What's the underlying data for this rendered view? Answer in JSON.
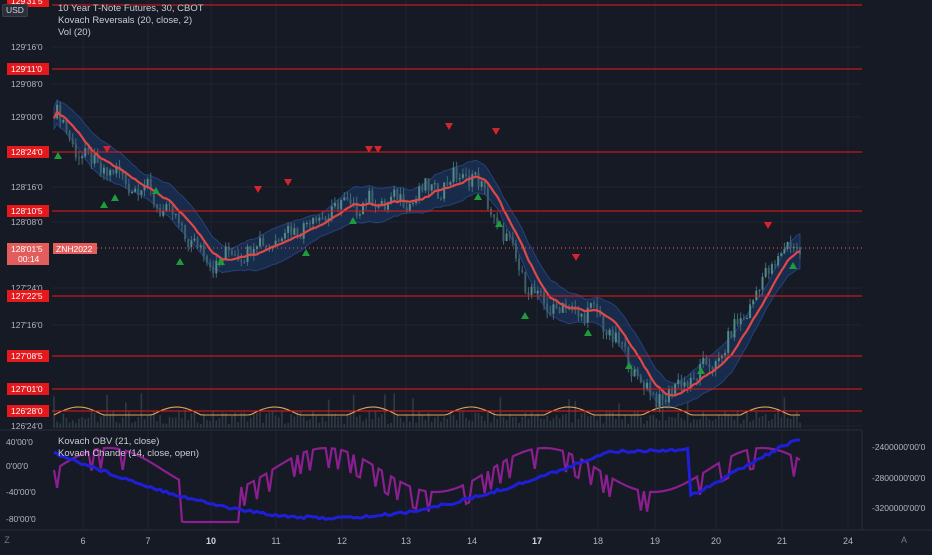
{
  "legend": {
    "symbol": "10 Year T-Note Futures, 30, CBOT",
    "indicator1": "Kovach Reversals (20, close, 2)",
    "indicator2": "Vol (20)",
    "indicator3": "Kovach OBV (21, close)",
    "indicator4": "Kovach Chande (14, close, open)"
  },
  "currency": "USD",
  "price_axis": {
    "labels": [
      "129'16'0",
      "129'08'0",
      "129'00'0",
      "128'16'0",
      "128'08'0",
      "127'24'0",
      "127'16'0",
      "126'24'0"
    ],
    "level_labels": [
      "129'11'0",
      "128'24'0",
      "128'10'5",
      "127'22'5",
      "127'08'5",
      "127'01'0",
      "126'28'0"
    ],
    "top_label": "129'31'5",
    "current_price": "128'01'5",
    "current_countdown": "00:14",
    "contract_tag": "ZNH2022"
  },
  "lower_pane": {
    "left_labels": [
      "40'00'0",
      "0'00'0",
      "-40'00'0",
      "-80'00'0"
    ],
    "right_labels": [
      "-2400000'00'0",
      "-2800000'00'0",
      "-3200000'00'0"
    ]
  },
  "time_axis": {
    "labels": [
      "6",
      "7",
      "10",
      "11",
      "12",
      "13",
      "14",
      "17",
      "18",
      "19",
      "20",
      "21",
      "24"
    ],
    "bold_labels": [
      "10",
      "17"
    ],
    "settings_icon": "Z",
    "auto_icon": "A"
  },
  "colors": {
    "background": "#161a25",
    "level_line": "#e5191c",
    "channel": "#1d3a6b",
    "moving_average": "#e04848",
    "candle": "#3f6b78",
    "volume_ma": "#e0a35a",
    "obv": "#1f1fd8",
    "chande": "#8b1f8f",
    "up_marker": "#1e9c3c",
    "down_marker": "#d6252a"
  },
  "chart_data": {
    "type": "line",
    "symbol": "ZNH2022",
    "timeframe": "30",
    "price_axis_range": [
      "126'24'0",
      "129'31'5"
    ],
    "support_resistance_levels": [
      "129'31'5",
      "129'11'0",
      "128'24'0",
      "128'10'5",
      "127'22'5",
      "127'08'5",
      "127'01'0",
      "126'28'0"
    ],
    "last_price": "128'01'5",
    "x_ticks": [
      "6",
      "7",
      "10",
      "11",
      "12",
      "13",
      "14",
      "17",
      "18",
      "19",
      "20",
      "21",
      "24"
    ],
    "price_series": [
      {
        "x": "6",
        "close": 128.7
      },
      {
        "x": "7",
        "close": 128.46
      },
      {
        "x": "10",
        "close": 127.95
      },
      {
        "x": "11",
        "close": 128.13
      },
      {
        "x": "12",
        "close": 128.36
      },
      {
        "x": "13",
        "close": 128.4
      },
      {
        "x": "14",
        "close": 128.6
      },
      {
        "x": "17",
        "close": 127.66
      },
      {
        "x": "18",
        "close": 127.57
      },
      {
        "x": "19",
        "close": 126.95
      },
      {
        "x": "20",
        "close": 127.23
      },
      {
        "x": "21",
        "close": 128.05
      }
    ],
    "obv_range": [
      "-3200000'00'0",
      "-2400000'00'0"
    ],
    "chande_range": [
      "-80'00'0",
      "40'00'0"
    ]
  }
}
